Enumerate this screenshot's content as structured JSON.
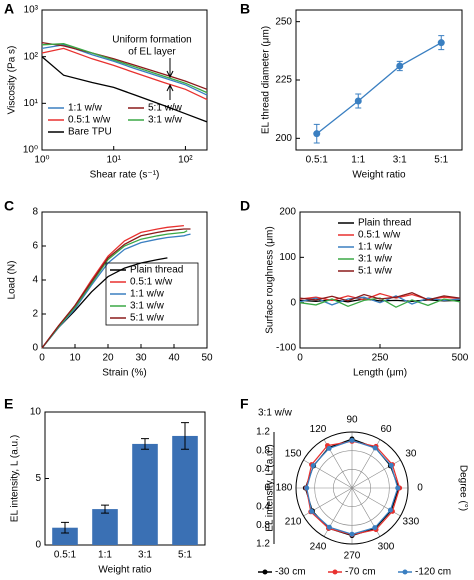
{
  "chart_data": [
    {
      "type": "line",
      "panel_label": "A",
      "xlabel": "Shear rate (s⁻¹)",
      "ylabel": "Viscosity (Pa s)",
      "xlog": true,
      "ylog": true,
      "xlim": [
        1,
        200
      ],
      "ylim": [
        1,
        1000
      ],
      "xticks": [
        {
          "value": 1,
          "label": "10⁰"
        },
        {
          "value": 10,
          "label": "10¹"
        },
        {
          "value": 100,
          "label": "10²"
        }
      ],
      "yticks": [
        {
          "value": 1,
          "label": "10⁰"
        },
        {
          "value": 10,
          "label": "10¹"
        },
        {
          "value": 100,
          "label": "10²"
        },
        {
          "value": 1000,
          "label": "10³"
        }
      ],
      "annotations": [
        "Uniform formation",
        "of EL layer"
      ],
      "x": [
        1,
        2,
        5,
        10,
        20,
        50,
        100,
        200
      ],
      "series": [
        {
          "name": "1:1 w/w",
          "color": "#3a7fc1",
          "values": [
            150,
            180,
            110,
            80,
            55,
            35,
            25,
            15
          ]
        },
        {
          "name": "5:1 w/w",
          "color": "#8b1a1a",
          "values": [
            200,
            170,
            120,
            90,
            65,
            42,
            30,
            20
          ]
        },
        {
          "name": "0.5:1 w/w",
          "color": "#e8312f",
          "values": [
            120,
            150,
            90,
            65,
            45,
            28,
            20,
            12
          ]
        },
        {
          "name": "3:1 w/w",
          "color": "#3aa845",
          "values": [
            180,
            190,
            120,
            85,
            60,
            38,
            27,
            17
          ]
        },
        {
          "name": "Bare TPU",
          "color": "#000000",
          "values": [
            100,
            40,
            28,
            22,
            15,
            9,
            6,
            4
          ]
        }
      ]
    },
    {
      "type": "line",
      "panel_label": "B",
      "xlabel": "Weight ratio",
      "ylabel": "EL thread diameter (μm)",
      "categories": [
        "0.5:1",
        "1:1",
        "3:1",
        "5:1"
      ],
      "ylim": [
        195,
        255
      ],
      "yticks": [
        200,
        225,
        250
      ],
      "series": [
        {
          "color": "#3a7fc1",
          "values": [
            202,
            216,
            231,
            241
          ],
          "errors": [
            4,
            3,
            2,
            3
          ]
        }
      ]
    },
    {
      "type": "line",
      "panel_label": "C",
      "xlabel": "Strain (%)",
      "ylabel": "Load (N)",
      "xlim": [
        0,
        50
      ],
      "ylim": [
        0,
        8
      ],
      "xticks": [
        0,
        10,
        20,
        30,
        40,
        50
      ],
      "yticks": [
        0,
        2,
        4,
        6,
        8
      ],
      "x": [
        0,
        5,
        10,
        15,
        20,
        25,
        30,
        35,
        38,
        43,
        44,
        45
      ],
      "series": [
        {
          "name": "Plain thread",
          "color": "#000000",
          "values": [
            0,
            1.2,
            2.2,
            3.3,
            4.2,
            4.7,
            5.0,
            5.2,
            5.3,
            null,
            null,
            null
          ]
        },
        {
          "name": "0.5:1 w/w",
          "color": "#e8312f",
          "values": [
            0,
            1.3,
            2.5,
            4.0,
            5.4,
            6.3,
            6.8,
            7.0,
            7.1,
            7.2,
            null,
            null
          ]
        },
        {
          "name": "1:1 w/w",
          "color": "#3a7fc1",
          "values": [
            0,
            1.2,
            2.3,
            3.7,
            5.0,
            5.8,
            6.2,
            6.4,
            6.5,
            6.6,
            6.65,
            6.7
          ]
        },
        {
          "name": "3:1 w/w",
          "color": "#3aa845",
          "values": [
            0,
            1.25,
            2.4,
            3.8,
            5.2,
            6.0,
            6.4,
            6.6,
            6.7,
            6.8,
            6.9,
            null
          ]
        },
        {
          "name": "5:1 w/w",
          "color": "#8b1a1a",
          "values": [
            0,
            1.3,
            2.5,
            3.9,
            5.3,
            6.1,
            6.6,
            6.8,
            6.9,
            7.0,
            7.0,
            7.0
          ]
        }
      ]
    },
    {
      "type": "line",
      "panel_label": "D",
      "xlabel": "Length (μm)",
      "ylabel": "Surface roughness (μm)",
      "xlim": [
        0,
        500
      ],
      "ylim": [
        -100,
        200
      ],
      "xticks": [
        0,
        250,
        500
      ],
      "yticks": [
        -100,
        0,
        100,
        200
      ],
      "x": [
        0,
        50,
        100,
        150,
        200,
        250,
        300,
        350,
        400,
        450,
        500
      ],
      "series": [
        {
          "name": "Plain thread",
          "color": "#000000",
          "values": [
            5,
            3,
            6,
            2,
            8,
            4,
            5,
            3,
            6,
            4,
            5
          ]
        },
        {
          "name": "0.5:1 w/w",
          "color": "#e8312f",
          "values": [
            8,
            12,
            5,
            15,
            6,
            20,
            10,
            18,
            7,
            12,
            9
          ]
        },
        {
          "name": "1:1 w/w",
          "color": "#3a7fc1",
          "values": [
            2,
            10,
            -5,
            8,
            12,
            0,
            15,
            -3,
            10,
            5,
            8
          ]
        },
        {
          "name": "3:1 w/w",
          "color": "#3aa845",
          "values": [
            0,
            -5,
            8,
            -8,
            5,
            10,
            -10,
            6,
            -6,
            8,
            2
          ]
        },
        {
          "name": "5:1 w/w",
          "color": "#8b1a1a",
          "values": [
            10,
            6,
            14,
            4,
            18,
            8,
            12,
            22,
            6,
            15,
            10
          ]
        }
      ]
    },
    {
      "type": "bar",
      "panel_label": "E",
      "xlabel": "Weight ratio",
      "ylabel": "EL intensity, L (a.u.)",
      "categories": [
        "0.5:1",
        "1:1",
        "3:1",
        "5:1"
      ],
      "ylim": [
        0,
        10
      ],
      "yticks": [
        0,
        5,
        10
      ],
      "color": "#3a70b4",
      "values": [
        1.3,
        2.7,
        7.6,
        8.2
      ],
      "errors": [
        0.4,
        0.3,
        0.4,
        1.0
      ]
    },
    {
      "type": "polar",
      "panel_label": "F",
      "subtitle": "3:1 w/w",
      "ylabel": "EL intensity, L (a.u.)",
      "xlabel": "Degree (°)",
      "theta": [
        0,
        30,
        60,
        90,
        120,
        150,
        180,
        210,
        240,
        270,
        300,
        330
      ],
      "rlim": [
        0,
        1.2
      ],
      "rticks": [
        0,
        0.4,
        0.8,
        1.2
      ],
      "series": [
        {
          "name": "-30 cm",
          "color": "#000000",
          "values": [
            1.0,
            0.95,
            1.0,
            1.05,
            1.0,
            0.95,
            1.0,
            0.98,
            1.0,
            1.02,
            1.0,
            0.97
          ]
        },
        {
          "name": "-70 cm",
          "color": "#e8312f",
          "values": [
            1.02,
            1.0,
            1.03,
            1.0,
            1.05,
            1.0,
            0.98,
            1.02,
            1.0,
            1.0,
            1.03,
            1.0
          ]
        },
        {
          "name": "-120 cm",
          "color": "#3a7fc1",
          "values": [
            0.98,
            0.97,
            0.99,
            1.02,
            0.98,
            0.96,
            0.97,
            1.0,
            0.97,
            0.99,
            0.98,
            0.95
          ]
        }
      ]
    }
  ]
}
